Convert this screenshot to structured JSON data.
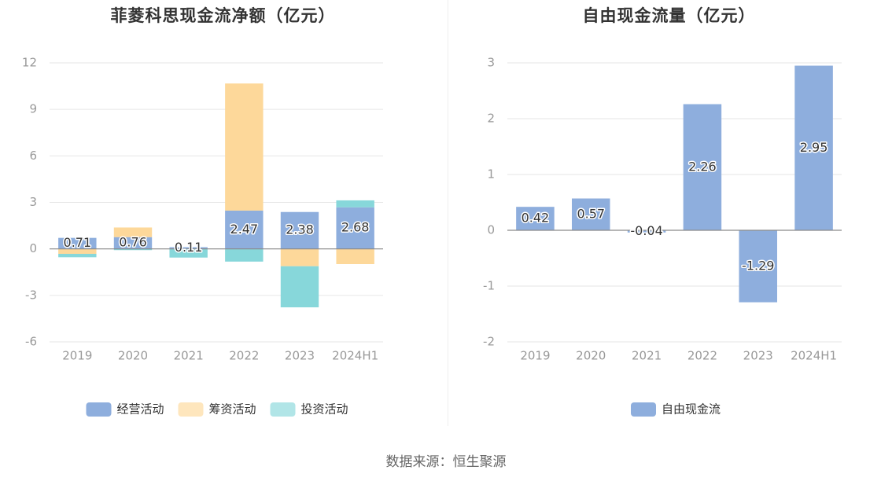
{
  "source_text": "数据来源：恒生聚源",
  "chart_data": [
    {
      "type": "bar",
      "stacked": true,
      "title": "菲菱科思现金流净额（亿元）",
      "categories": [
        "2019",
        "2020",
        "2021",
        "2022",
        "2023",
        "2024H1"
      ],
      "ylim": [
        -6,
        12
      ],
      "yticks": [
        12,
        9,
        6,
        3,
        0,
        -3,
        -6
      ],
      "grid": true,
      "legend_position": "bottom-center",
      "series": [
        {
          "name": "经营活动",
          "color": "#8eaedd",
          "values": [
            0.71,
            0.76,
            0.11,
            2.47,
            2.38,
            2.68
          ]
        },
        {
          "name": "筹资活动",
          "color": "#fdd89a",
          "values": [
            -0.32,
            0.62,
            0.0,
            8.2,
            -1.12,
            -0.98
          ]
        },
        {
          "name": "投资活动",
          "color": "#87d7da",
          "values": [
            -0.22,
            -0.08,
            -0.56,
            -0.82,
            -2.65,
            0.45
          ]
        }
      ],
      "data_labels": [
        "0.71",
        "0.76",
        "0.11",
        "2.47",
        "2.38",
        "2.68"
      ]
    },
    {
      "type": "bar",
      "title": "自由现金流量（亿元）",
      "categories": [
        "2019",
        "2020",
        "2021",
        "2022",
        "2023",
        "2024H1"
      ],
      "ylim": [
        -2,
        3
      ],
      "yticks": [
        3,
        2,
        1,
        0,
        -1,
        -2
      ],
      "grid": true,
      "legend_position": "bottom-center",
      "series": [
        {
          "name": "自由现金流",
          "color": "#8eaedd",
          "values": [
            0.42,
            0.57,
            -0.04,
            2.26,
            -1.29,
            2.95
          ]
        }
      ],
      "data_labels": [
        "0.42",
        "0.57",
        "-0.04",
        "2.26",
        "-1.29",
        "2.95"
      ]
    }
  ]
}
